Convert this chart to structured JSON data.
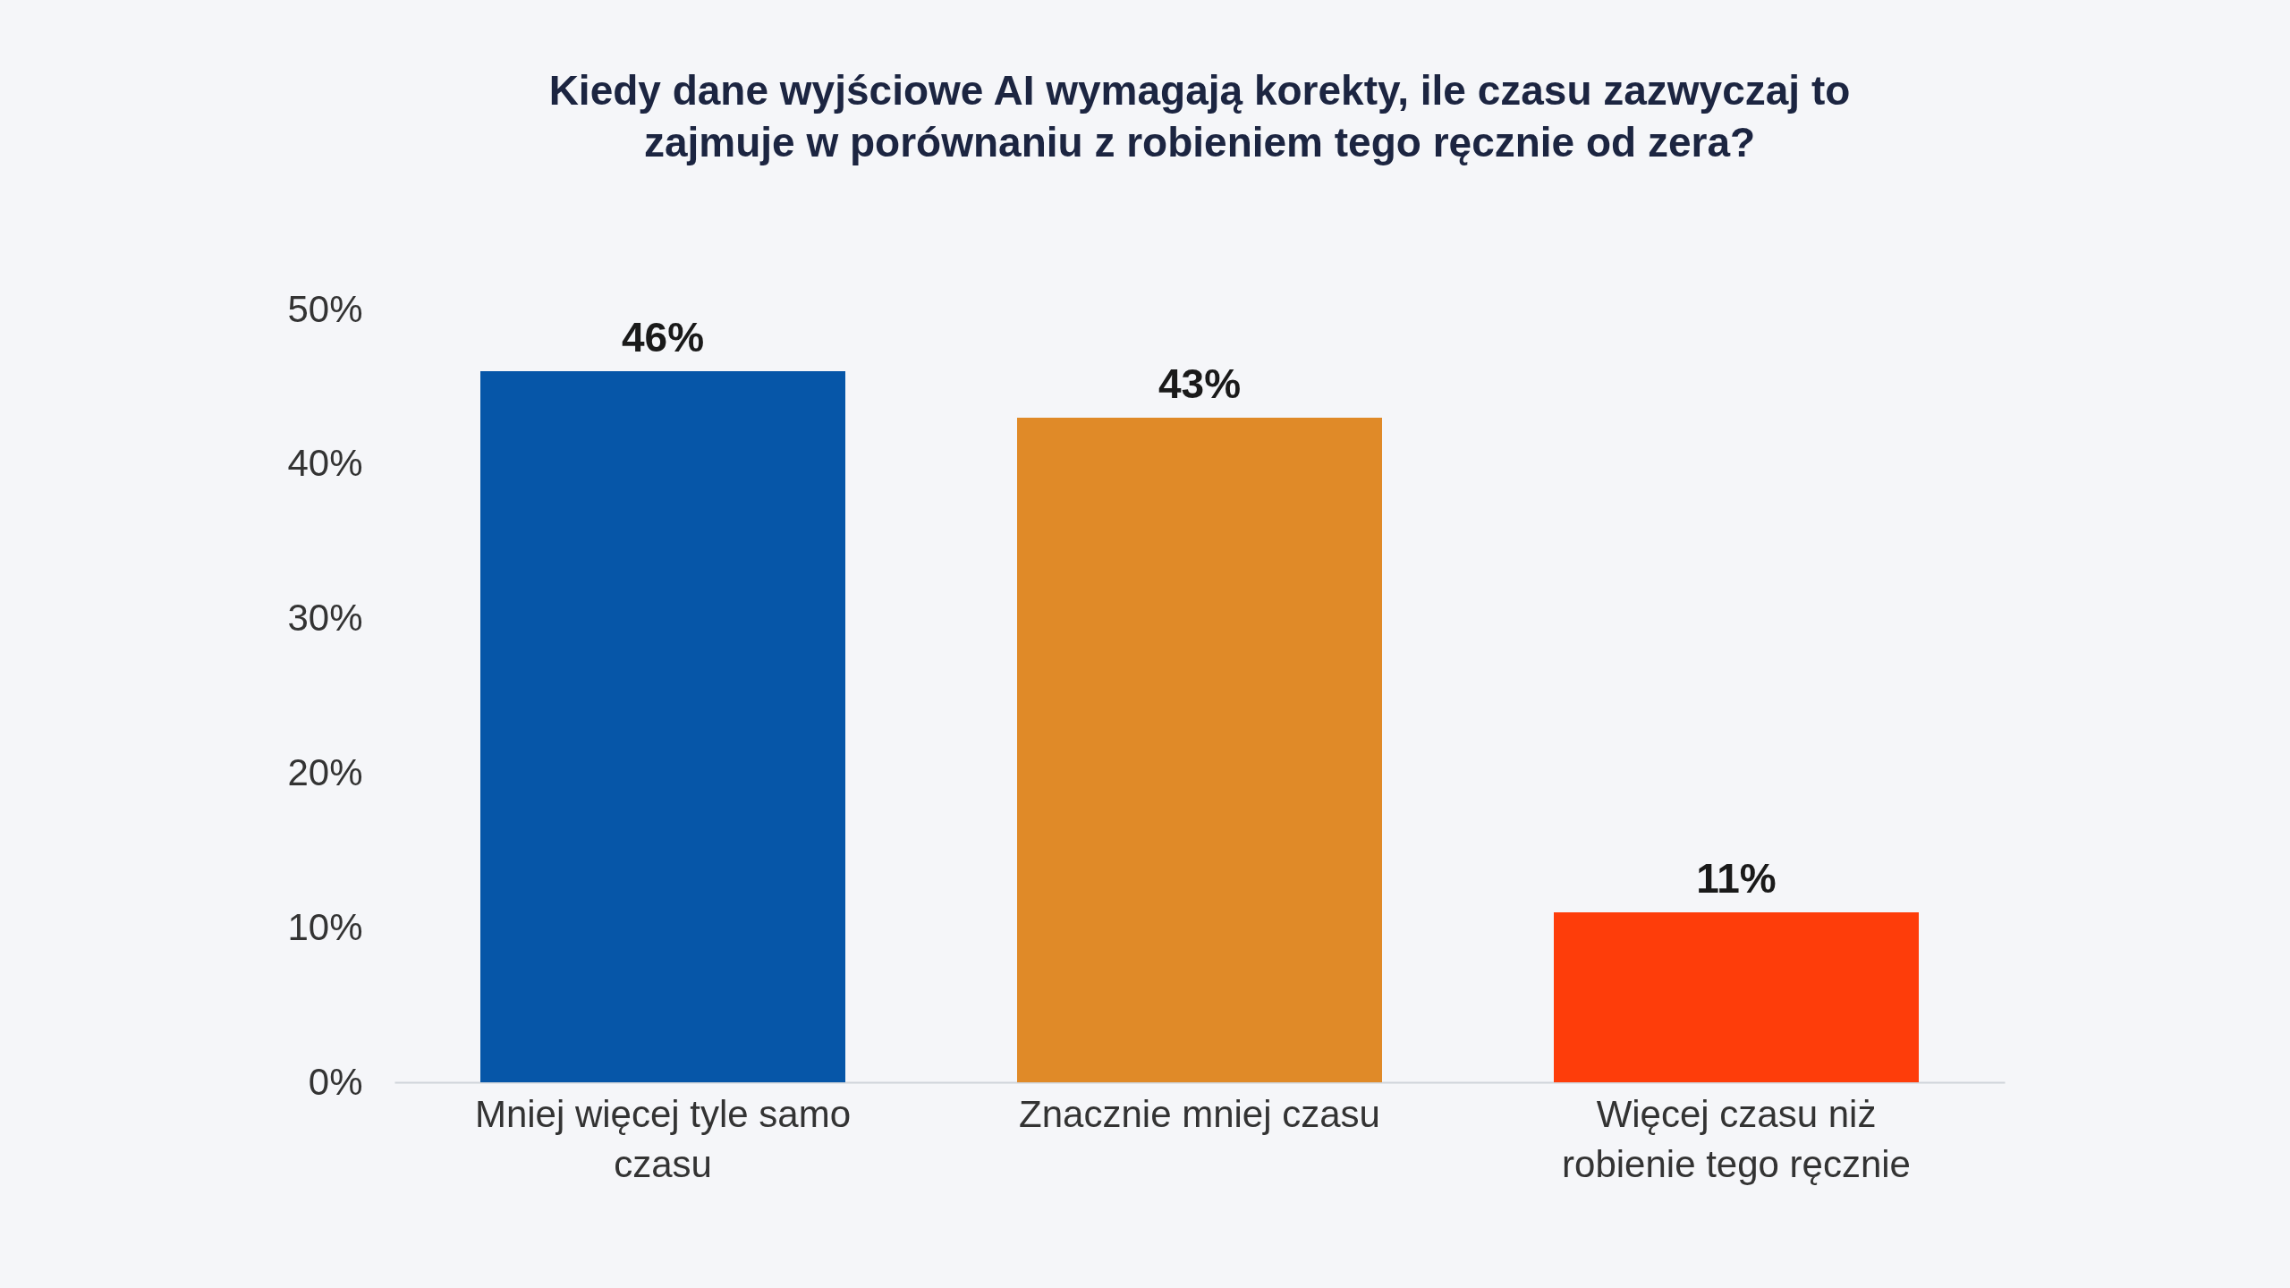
{
  "chart_data": {
    "type": "bar",
    "title": "Kiedy dane wyjściowe AI wymagają korekty, ile czasu zazwyczaj to zajmuje w porównaniu z robieniem tego ręcznie od zera?",
    "categories": [
      "Mniej więcej tyle samo czasu",
      "Znacznie mniej czasu",
      "Więcej czasu niż robienie tego ręcznie"
    ],
    "values": [
      46,
      43,
      11
    ],
    "colors": [
      "#0656a8",
      "#e08a28",
      "#fe3d0a"
    ],
    "value_labels": [
      "46%",
      "43%",
      "11%"
    ],
    "ylim": [
      0,
      50
    ],
    "yticks": [
      {
        "value": 0,
        "label": "0%"
      },
      {
        "value": 10,
        "label": "10%"
      },
      {
        "value": 20,
        "label": "20%"
      },
      {
        "value": 30,
        "label": "30%"
      },
      {
        "value": 40,
        "label": "40%"
      },
      {
        "value": 50,
        "label": "50%"
      }
    ],
    "grid": false,
    "legend": false
  }
}
